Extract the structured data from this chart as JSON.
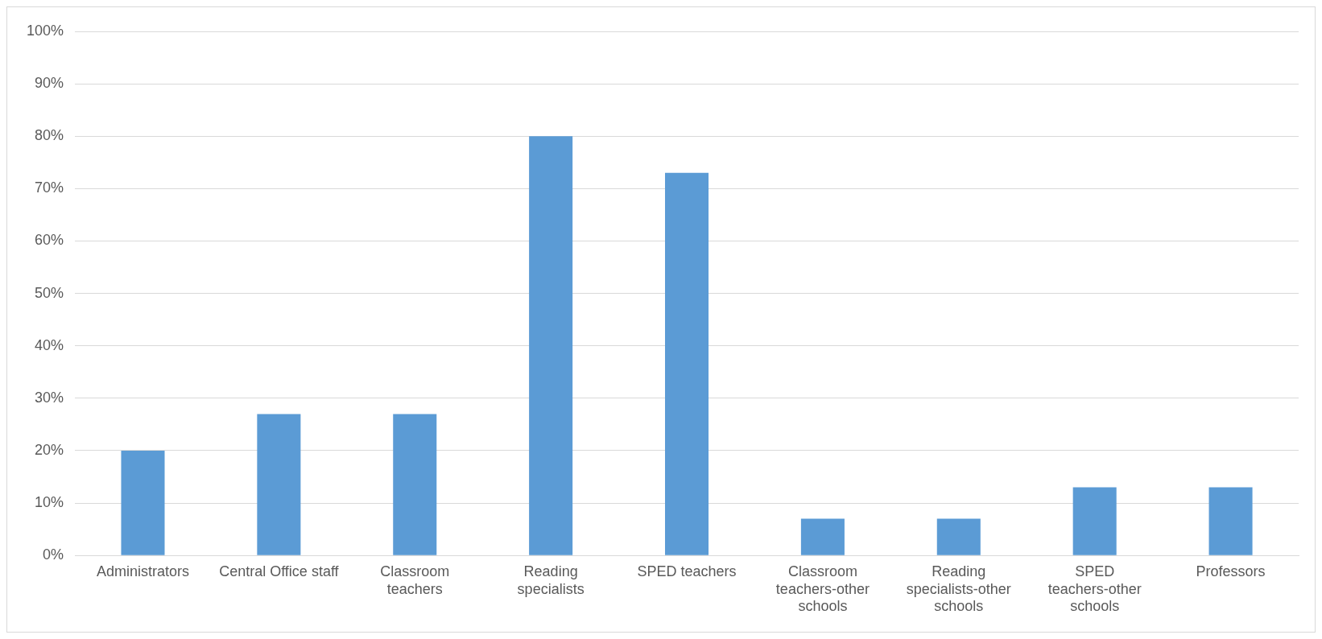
{
  "chart_data": {
    "type": "bar",
    "categories": [
      "Administrators",
      "Central Office staff",
      "Classroom teachers",
      "Reading specialists",
      "SPED teachers",
      "Classroom teachers-other schools",
      "Reading specialists-other schools",
      "SPED teachers-other schools",
      "Professors"
    ],
    "values": [
      20,
      27,
      27,
      80,
      73,
      7,
      7,
      13,
      13
    ],
    "color": "#5b9bd5",
    "ylim": [
      0,
      100
    ],
    "yticks": [
      {
        "value": 0,
        "label": "0%"
      },
      {
        "value": 10,
        "label": "10%"
      },
      {
        "value": 20,
        "label": "20%"
      },
      {
        "value": 30,
        "label": "30%"
      },
      {
        "value": 40,
        "label": "40%"
      },
      {
        "value": 50,
        "label": "50%"
      },
      {
        "value": 60,
        "label": "60%"
      },
      {
        "value": 70,
        "label": "70%"
      },
      {
        "value": 80,
        "label": "80%"
      },
      {
        "value": 90,
        "label": "90%"
      },
      {
        "value": 100,
        "label": "100%"
      }
    ],
    "grid": "y"
  }
}
